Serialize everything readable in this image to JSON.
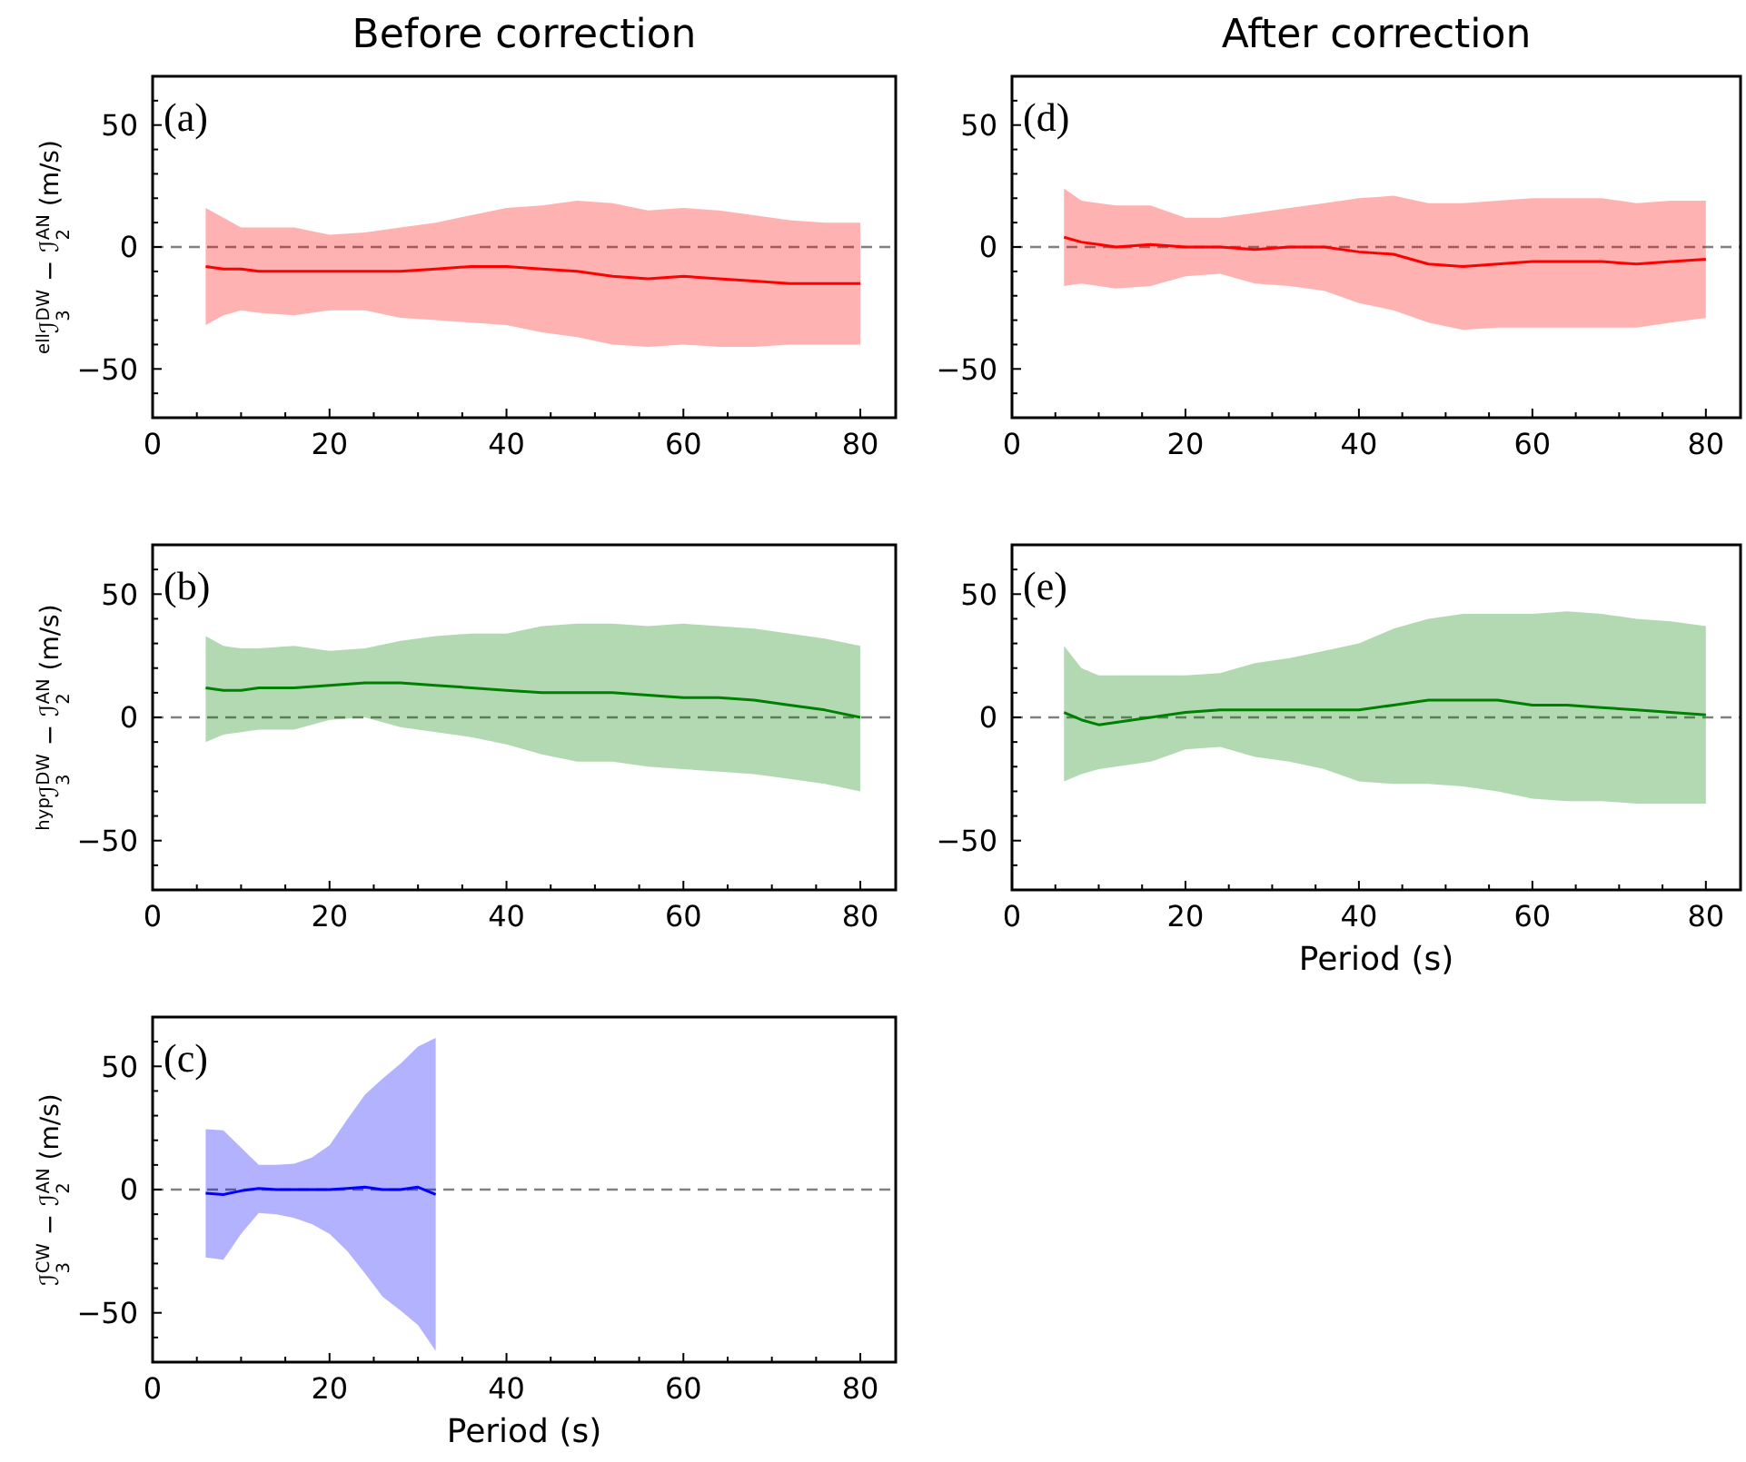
{
  "chart_data": [
    {
      "type": "line",
      "title": "Before correction",
      "ylabel": "$^{ell}$ℐ$_{3}$$^{DW}$ − ℐ$_{2}$$^{AN}$ (m/s)",
      "annotations": [
        "(a)"
      ],
      "x": [
        6,
        8,
        10,
        12,
        16,
        20,
        24,
        28,
        32,
        36,
        40,
        44,
        48,
        52,
        56,
        60,
        64,
        68,
        72,
        76,
        80
      ],
      "series": [
        {
          "color": "#ff0000",
          "values": [
            -8,
            -9,
            -9,
            -10,
            -10,
            -10,
            -10,
            -10,
            -9,
            -8,
            -8,
            -9,
            -10,
            -12,
            -13,
            -12,
            -13,
            -14,
            -15,
            -15,
            -15
          ],
          "upper": [
            16,
            12,
            8,
            8,
            8,
            5,
            6,
            8,
            10,
            13,
            16,
            17,
            19,
            18,
            15,
            16,
            15,
            13,
            11,
            10,
            10
          ],
          "lower": [
            -32,
            -28,
            -26,
            -27,
            -28,
            -26,
            -26,
            -29,
            -30,
            -31,
            -32,
            -35,
            -37,
            -40,
            -41,
            -40,
            -41,
            -41,
            -40,
            -40,
            -40
          ]
        }
      ],
      "xlim": [
        0,
        84
      ],
      "ylim": [
        -70,
        70
      ],
      "xticks": [
        0,
        {
          "value": 5,
          "label": null
        },
        {
          "value": 10,
          "label": null
        },
        {
          "value": 15,
          "label": null
        },
        20,
        {
          "value": 25,
          "label": null
        },
        {
          "value": 30,
          "label": null
        },
        {
          "value": 35,
          "label": null
        },
        40,
        {
          "value": 45,
          "label": null
        },
        {
          "value": 50,
          "label": null
        },
        {
          "value": 55,
          "label": null
        },
        60,
        {
          "value": 65,
          "label": null
        },
        {
          "value": 70,
          "label": null
        },
        {
          "value": 75,
          "label": null
        },
        80
      ],
      "yticks": [
        {
          "value": -60,
          "label": null
        },
        {
          "value": -50,
          "label": "−50"
        },
        {
          "value": -40,
          "label": null
        },
        {
          "value": -30,
          "label": null
        },
        {
          "value": -20,
          "label": null
        },
        {
          "value": -10,
          "label": null
        },
        {
          "value": 0,
          "label": "0"
        },
        {
          "value": 10,
          "label": null
        },
        {
          "value": 20,
          "label": null
        },
        {
          "value": 30,
          "label": null
        },
        {
          "value": 40,
          "label": null
        },
        {
          "value": 50,
          "label": "50"
        },
        {
          "value": 60,
          "label": null
        }
      ],
      "ref_lines": [
        {
          "axis": "y",
          "value": 0,
          "color": "#808080",
          "line_style": "dashed"
        }
      ]
    },
    {
      "type": "line",
      "title": "After correction",
      "annotations": [
        "(d)"
      ],
      "x": [
        6,
        8,
        10,
        12,
        16,
        20,
        24,
        28,
        32,
        36,
        40,
        44,
        48,
        52,
        56,
        60,
        64,
        68,
        72,
        76,
        80
      ],
      "series": [
        {
          "color": "#ff0000",
          "values": [
            4,
            2,
            1,
            0,
            1,
            0,
            0,
            -1,
            0,
            0,
            -2,
            -3,
            -7,
            -8,
            -7,
            -6,
            -6,
            -6,
            -7,
            -6,
            -5
          ],
          "upper": [
            24,
            19,
            18,
            17,
            17,
            12,
            12,
            14,
            16,
            18,
            20,
            21,
            18,
            18,
            19,
            20,
            20,
            20,
            18,
            19,
            19
          ],
          "lower": [
            -16,
            -15,
            -16,
            -17,
            -16,
            -12,
            -11,
            -15,
            -16,
            -18,
            -23,
            -26,
            -31,
            -34,
            -33,
            -33,
            -33,
            -33,
            -33,
            -31,
            -29
          ]
        }
      ],
      "xlim": [
        0,
        84
      ],
      "ylim": [
        -70,
        70
      ],
      "xticks": [
        0,
        {
          "value": 5,
          "label": null
        },
        {
          "value": 10,
          "label": null
        },
        {
          "value": 15,
          "label": null
        },
        20,
        {
          "value": 25,
          "label": null
        },
        {
          "value": 30,
          "label": null
        },
        {
          "value": 35,
          "label": null
        },
        40,
        {
          "value": 45,
          "label": null
        },
        {
          "value": 50,
          "label": null
        },
        {
          "value": 55,
          "label": null
        },
        60,
        {
          "value": 65,
          "label": null
        },
        {
          "value": 70,
          "label": null
        },
        {
          "value": 75,
          "label": null
        },
        80
      ],
      "yticks": [
        {
          "value": -60,
          "label": null
        },
        {
          "value": -50,
          "label": "−50"
        },
        {
          "value": -40,
          "label": null
        },
        {
          "value": -30,
          "label": null
        },
        {
          "value": -20,
          "label": null
        },
        {
          "value": -10,
          "label": null
        },
        {
          "value": 0,
          "label": "0"
        },
        {
          "value": 10,
          "label": null
        },
        {
          "value": 20,
          "label": null
        },
        {
          "value": 30,
          "label": null
        },
        {
          "value": 40,
          "label": null
        },
        {
          "value": 50,
          "label": "50"
        },
        {
          "value": 60,
          "label": null
        }
      ],
      "ref_lines": [
        {
          "axis": "y",
          "value": 0,
          "color": "#808080",
          "line_style": "dashed"
        }
      ]
    },
    {
      "type": "line",
      "ylabel": "$^{hyp}$ℐ$_{3}$$^{DW}$ − ℐ$_{2}$$^{AN}$ (m/s)",
      "annotations": [
        "(b)"
      ],
      "x": [
        6,
        8,
        10,
        12,
        16,
        20,
        24,
        28,
        32,
        36,
        40,
        44,
        48,
        52,
        56,
        60,
        64,
        68,
        72,
        76,
        80
      ],
      "series": [
        {
          "color": "#008000",
          "values": [
            12,
            11,
            11,
            12,
            12,
            13,
            14,
            14,
            13,
            12,
            11,
            10,
            10,
            10,
            9,
            8,
            8,
            7,
            5,
            3,
            0
          ],
          "upper": [
            33,
            29,
            28,
            28,
            29,
            27,
            28,
            31,
            33,
            34,
            34,
            37,
            38,
            38,
            37,
            38,
            37,
            36,
            34,
            32,
            29
          ],
          "lower": [
            -10,
            -7,
            -6,
            -5,
            -5,
            -1,
            0,
            -4,
            -6,
            -8,
            -11,
            -15,
            -18,
            -18,
            -20,
            -21,
            -22,
            -23,
            -25,
            -27,
            -30
          ]
        }
      ],
      "xlim": [
        0,
        84
      ],
      "ylim": [
        -70,
        70
      ],
      "xticks": [
        0,
        {
          "value": 5,
          "label": null
        },
        {
          "value": 10,
          "label": null
        },
        {
          "value": 15,
          "label": null
        },
        20,
        {
          "value": 25,
          "label": null
        },
        {
          "value": 30,
          "label": null
        },
        {
          "value": 35,
          "label": null
        },
        40,
        {
          "value": 45,
          "label": null
        },
        {
          "value": 50,
          "label": null
        },
        {
          "value": 55,
          "label": null
        },
        60,
        {
          "value": 65,
          "label": null
        },
        {
          "value": 70,
          "label": null
        },
        {
          "value": 75,
          "label": null
        },
        80
      ],
      "yticks": [
        {
          "value": -60,
          "label": null
        },
        {
          "value": -50,
          "label": "−50"
        },
        {
          "value": -40,
          "label": null
        },
        {
          "value": -30,
          "label": null
        },
        {
          "value": -20,
          "label": null
        },
        {
          "value": -10,
          "label": null
        },
        {
          "value": 0,
          "label": "0"
        },
        {
          "value": 10,
          "label": null
        },
        {
          "value": 20,
          "label": null
        },
        {
          "value": 30,
          "label": null
        },
        {
          "value": 40,
          "label": null
        },
        {
          "value": 50,
          "label": "50"
        },
        {
          "value": 60,
          "label": null
        }
      ],
      "ref_lines": [
        {
          "axis": "y",
          "value": 0,
          "color": "#808080",
          "line_style": "dashed"
        }
      ]
    },
    {
      "type": "line",
      "xlabel": "Period (s)",
      "annotations": [
        "(e)"
      ],
      "x": [
        6,
        8,
        10,
        12,
        16,
        20,
        24,
        28,
        32,
        36,
        40,
        44,
        48,
        52,
        56,
        60,
        64,
        68,
        72,
        76,
        80
      ],
      "series": [
        {
          "color": "#008000",
          "values": [
            2,
            -1,
            -3,
            -2,
            0,
            2,
            3,
            3,
            3,
            3,
            3,
            5,
            7,
            7,
            7,
            5,
            5,
            4,
            3,
            2,
            1
          ],
          "upper": [
            29,
            20,
            17,
            17,
            17,
            17,
            18,
            22,
            24,
            27,
            30,
            36,
            40,
            42,
            42,
            42,
            43,
            42,
            40,
            39,
            37
          ],
          "lower": [
            -26,
            -23,
            -21,
            -20,
            -18,
            -13,
            -12,
            -16,
            -18,
            -21,
            -26,
            -27,
            -27,
            -28,
            -30,
            -33,
            -34,
            -34,
            -35,
            -35,
            -35
          ]
        }
      ],
      "xlim": [
        0,
        84
      ],
      "ylim": [
        -70,
        70
      ],
      "xticks": [
        0,
        {
          "value": 5,
          "label": null
        },
        {
          "value": 10,
          "label": null
        },
        {
          "value": 15,
          "label": null
        },
        20,
        {
          "value": 25,
          "label": null
        },
        {
          "value": 30,
          "label": null
        },
        {
          "value": 35,
          "label": null
        },
        40,
        {
          "value": 45,
          "label": null
        },
        {
          "value": 50,
          "label": null
        },
        {
          "value": 55,
          "label": null
        },
        60,
        {
          "value": 65,
          "label": null
        },
        {
          "value": 70,
          "label": null
        },
        {
          "value": 75,
          "label": null
        },
        80
      ],
      "yticks": [
        {
          "value": -60,
          "label": null
        },
        {
          "value": -50,
          "label": "−50"
        },
        {
          "value": -40,
          "label": null
        },
        {
          "value": -30,
          "label": null
        },
        {
          "value": -20,
          "label": null
        },
        {
          "value": -10,
          "label": null
        },
        {
          "value": 0,
          "label": "0"
        },
        {
          "value": 10,
          "label": null
        },
        {
          "value": 20,
          "label": null
        },
        {
          "value": 30,
          "label": null
        },
        {
          "value": 40,
          "label": null
        },
        {
          "value": 50,
          "label": "50"
        },
        {
          "value": 60,
          "label": null
        }
      ],
      "ref_lines": [
        {
          "axis": "y",
          "value": 0,
          "color": "#808080",
          "line_style": "dashed"
        }
      ]
    },
    {
      "type": "line",
      "xlabel": "Period (s)",
      "ylabel": "ℐ$_{3}$$^{CW}$ − ℐ$_{2}$$^{AN}$ (m/s)",
      "annotations": [
        "(c)"
      ],
      "x": [
        6,
        8,
        10,
        12,
        14,
        16,
        18,
        20,
        22,
        24,
        26,
        28,
        30,
        32
      ],
      "series": [
        {
          "color": "#0000ff",
          "values": [
            -1.5,
            -2,
            -0.5,
            0.5,
            0,
            0,
            0,
            0,
            0.5,
            1,
            0,
            0,
            1,
            -2
          ],
          "upper": [
            24.5,
            24,
            17,
            10,
            10,
            10.5,
            13,
            18,
            28.5,
            38.5,
            45,
            51,
            58,
            61.5
          ],
          "lower": [
            -27.5,
            -28.5,
            -18,
            -9.5,
            -10,
            -11.5,
            -14,
            -18,
            -25,
            -34,
            -43.5,
            -49,
            -55,
            -65.5
          ]
        }
      ],
      "xlim": [
        0,
        84
      ],
      "ylim": [
        -70,
        70
      ],
      "xticks": [
        0,
        {
          "value": 5,
          "label": null
        },
        {
          "value": 10,
          "label": null
        },
        {
          "value": 15,
          "label": null
        },
        20,
        {
          "value": 25,
          "label": null
        },
        {
          "value": 30,
          "label": null
        },
        {
          "value": 35,
          "label": null
        },
        40,
        {
          "value": 45,
          "label": null
        },
        {
          "value": 50,
          "label": null
        },
        {
          "value": 55,
          "label": null
        },
        60,
        {
          "value": 65,
          "label": null
        },
        {
          "value": 70,
          "label": null
        },
        {
          "value": 75,
          "label": null
        },
        80
      ],
      "yticks": [
        {
          "value": -60,
          "label": null
        },
        {
          "value": -50,
          "label": "−50"
        },
        {
          "value": -40,
          "label": null
        },
        {
          "value": -30,
          "label": null
        },
        {
          "value": -20,
          "label": null
        },
        {
          "value": -10,
          "label": null
        },
        {
          "value": 0,
          "label": "0"
        },
        {
          "value": 10,
          "label": null
        },
        {
          "value": 20,
          "label": null
        },
        {
          "value": 30,
          "label": null
        },
        {
          "value": 40,
          "label": null
        },
        {
          "value": 50,
          "label": "50"
        },
        {
          "value": 60,
          "label": null
        }
      ],
      "ref_lines": [
        {
          "axis": "y",
          "value": 0,
          "color": "#808080",
          "line_style": "dashed"
        }
      ]
    }
  ]
}
